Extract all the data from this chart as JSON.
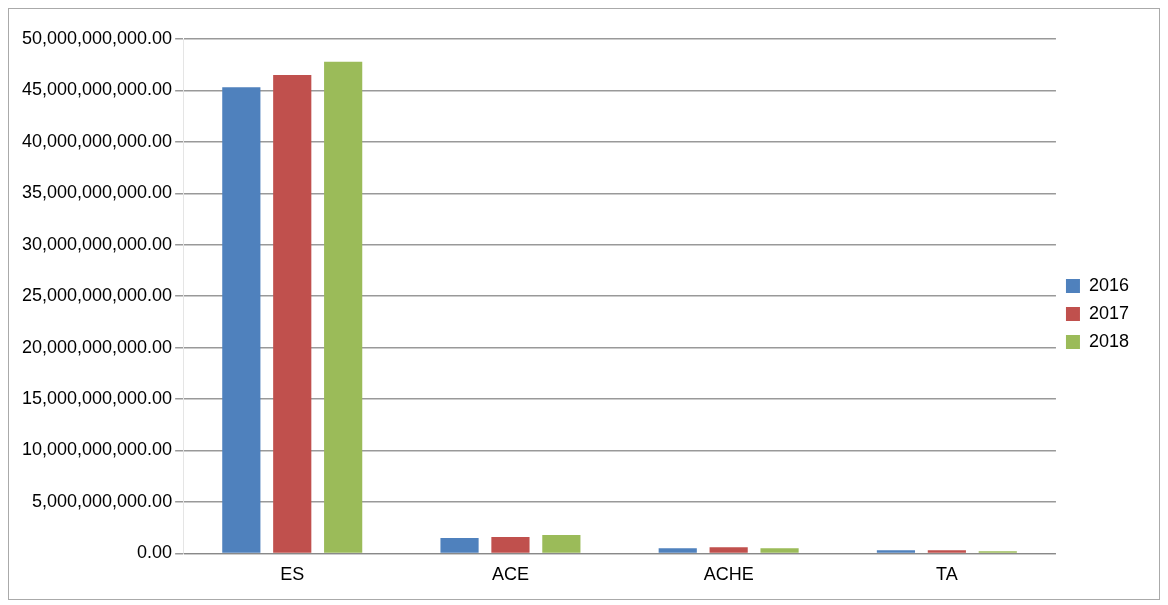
{
  "chart_data": {
    "type": "bar",
    "categories": [
      "ES",
      "ACE",
      "ACHE",
      "TA"
    ],
    "series": [
      {
        "name": "2016",
        "color": "#4f81bd",
        "values": [
          45300000000,
          1500000000,
          500000000,
          300000000
        ]
      },
      {
        "name": "2017",
        "color": "#c0504d",
        "values": [
          46500000000,
          1600000000,
          600000000,
          300000000
        ]
      },
      {
        "name": "2018",
        "color": "#9bbb59",
        "values": [
          47800000000,
          1800000000,
          500000000,
          200000000
        ]
      }
    ],
    "ylim": [
      0,
      50000000000
    ],
    "yticks": [
      {
        "value": 0,
        "label": "0.00"
      },
      {
        "value": 5000000000,
        "label": "5,000,000,000.00"
      },
      {
        "value": 10000000000,
        "label": "10,000,000,000.00"
      },
      {
        "value": 15000000000,
        "label": "15,000,000,000.00"
      },
      {
        "value": 20000000000,
        "label": "20,000,000,000.00"
      },
      {
        "value": 25000000000,
        "label": "25,000,000,000.00"
      },
      {
        "value": 30000000000,
        "label": "30,000,000,000.00"
      },
      {
        "value": 35000000000,
        "label": "35,000,000,000.00"
      },
      {
        "value": 40000000000,
        "label": "40,000,000,000.00"
      },
      {
        "value": 45000000000,
        "label": "45,000,000,000.00"
      },
      {
        "value": 50000000000,
        "label": "50,000,000,000.00"
      }
    ],
    "grid": "y",
    "legend": "right"
  }
}
